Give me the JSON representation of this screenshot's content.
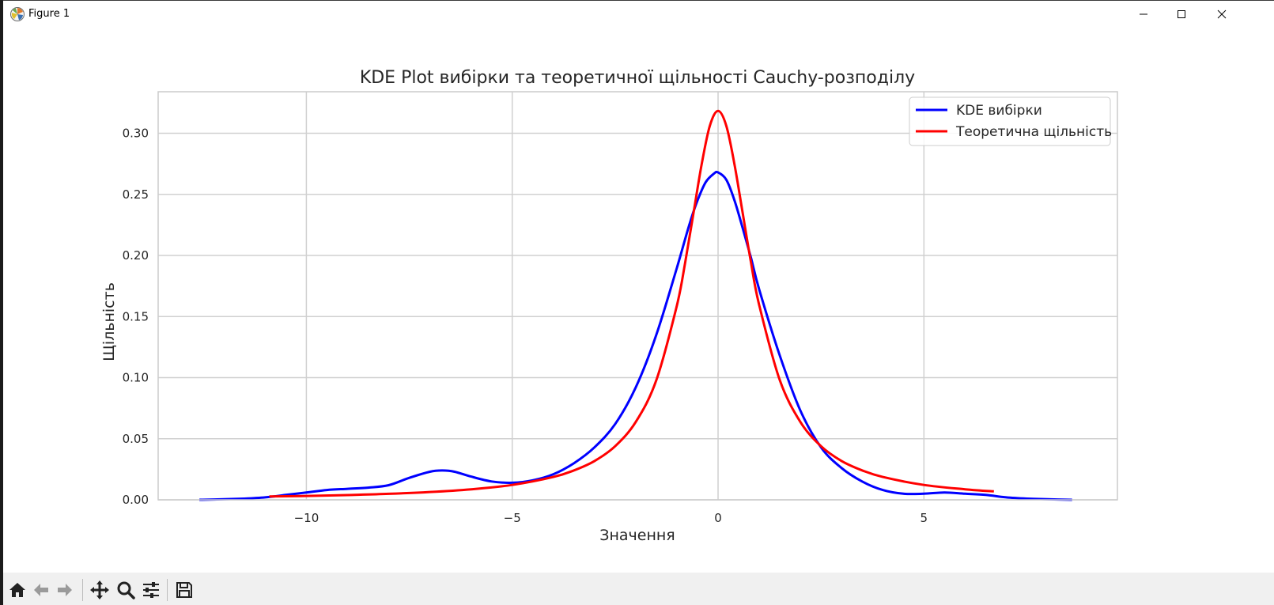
{
  "window": {
    "title": "Figure 1",
    "controls": {
      "minimize": "minimize",
      "maximize": "maximize",
      "close": "close"
    }
  },
  "toolbar": {
    "buttons": [
      "home-icon",
      "back-icon",
      "forward-icon",
      "pan-icon",
      "zoom-icon",
      "configure-subplots-icon",
      "save-icon"
    ]
  },
  "colors": {
    "kde": "#0000ff",
    "theory": "#ff0000",
    "grid": "#d0d0d0",
    "frame": "#cccccc"
  },
  "chart_data": {
    "type": "line",
    "title": "KDE Plot вибірки та теоретичної щільності Cauchy-розподілу",
    "xlabel": "Значення",
    "ylabel": "Щільність",
    "xlim": [
      -13.6,
      9.7
    ],
    "ylim": [
      0.0,
      0.334
    ],
    "xticks": [
      -10,
      -5,
      0,
      5
    ],
    "xtick_labels": [
      "−10",
      "−5",
      "0",
      "5"
    ],
    "yticks": [
      0.0,
      0.05,
      0.1,
      0.15,
      0.2,
      0.25,
      0.3
    ],
    "ytick_labels": [
      "0.00",
      "0.05",
      "0.10",
      "0.15",
      "0.20",
      "0.25",
      "0.30"
    ],
    "grid": true,
    "legend_position": "top-right",
    "series": [
      {
        "name": "KDE вибірки",
        "color": "#0000ff",
        "x": [
          -12.6,
          -12.0,
          -11.5,
          -11.0,
          -10.5,
          -10.0,
          -9.5,
          -9.0,
          -8.5,
          -8.0,
          -7.5,
          -7.0,
          -6.7,
          -6.4,
          -6.0,
          -5.5,
          -5.0,
          -4.5,
          -4.0,
          -3.5,
          -3.0,
          -2.5,
          -2.0,
          -1.5,
          -1.0,
          -0.7,
          -0.5,
          -0.3,
          -0.1,
          0.0,
          0.2,
          0.4,
          0.6,
          0.8,
          1.0,
          1.5,
          2.0,
          2.5,
          3.0,
          3.5,
          4.0,
          4.5,
          5.0,
          5.5,
          6.0,
          6.5,
          7.0,
          7.5,
          8.0,
          8.6
        ],
        "y": [
          0.0,
          0.0005,
          0.001,
          0.002,
          0.004,
          0.006,
          0.008,
          0.009,
          0.01,
          0.012,
          0.018,
          0.023,
          0.024,
          0.023,
          0.019,
          0.015,
          0.014,
          0.016,
          0.021,
          0.03,
          0.043,
          0.062,
          0.092,
          0.135,
          0.19,
          0.225,
          0.245,
          0.26,
          0.267,
          0.268,
          0.262,
          0.245,
          0.222,
          0.198,
          0.172,
          0.118,
          0.073,
          0.043,
          0.026,
          0.015,
          0.008,
          0.005,
          0.005,
          0.006,
          0.005,
          0.004,
          0.002,
          0.001,
          0.0005,
          0.0
        ]
      },
      {
        "name": "Теоретична щільність",
        "color": "#ff0000",
        "x": [
          -10.9,
          -10.0,
          -9.0,
          -8.0,
          -7.0,
          -6.0,
          -5.0,
          -4.0,
          -3.5,
          -3.0,
          -2.5,
          -2.0,
          -1.5,
          -1.0,
          -0.8,
          -0.6,
          -0.4,
          -0.2,
          0.0,
          0.2,
          0.4,
          0.6,
          0.8,
          1.0,
          1.5,
          2.0,
          2.5,
          3.0,
          3.5,
          4.0,
          5.0,
          6.0,
          6.7
        ],
        "y": [
          0.0027,
          0.0032,
          0.0039,
          0.0049,
          0.0064,
          0.0086,
          0.0122,
          0.0187,
          0.0241,
          0.0318,
          0.0439,
          0.0637,
          0.0979,
          0.1592,
          0.1941,
          0.2341,
          0.2744,
          0.3061,
          0.3183,
          0.3061,
          0.2744,
          0.2341,
          0.1941,
          0.1592,
          0.0979,
          0.0637,
          0.0439,
          0.0318,
          0.0241,
          0.0187,
          0.0122,
          0.0086,
          0.0069
        ]
      }
    ]
  }
}
